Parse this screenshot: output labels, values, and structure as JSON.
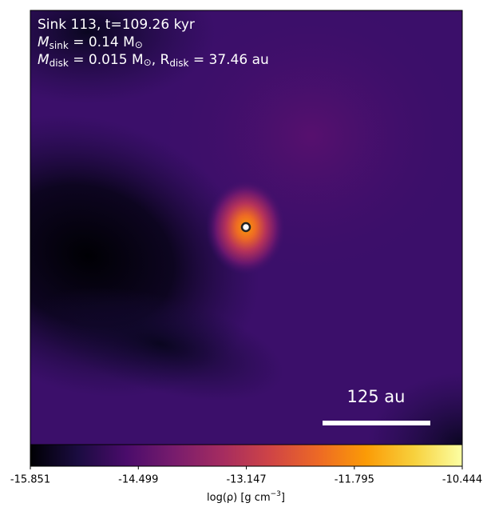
{
  "chart_data": {
    "type": "image",
    "annotations": {
      "line1": "Sink 113, t=109.26 kyr",
      "line2": [
        "M",
        "sink",
        " = 0.14 M",
        "⊙"
      ],
      "line3": [
        "M",
        "disk",
        " = 0.015 M",
        "⊙",
        ", R",
        "disk",
        " = 37.46 au"
      ]
    },
    "scale_bar_label": "125 au",
    "colorbar": {
      "label": [
        "log(ρ) [g cm",
        "−3",
        "]"
      ],
      "clim": [
        -15.851,
        -10.444
      ],
      "ticks": [
        -15.851,
        -14.499,
        -13.147,
        -11.795,
        -10.444
      ],
      "colormap": [
        "#000004",
        "#1b0c41",
        "#4a0c6b",
        "#781c6d",
        "#a52c60",
        "#cf4446",
        "#ed6925",
        "#fb9b06",
        "#f7d13d",
        "#fcffa4"
      ]
    }
  }
}
